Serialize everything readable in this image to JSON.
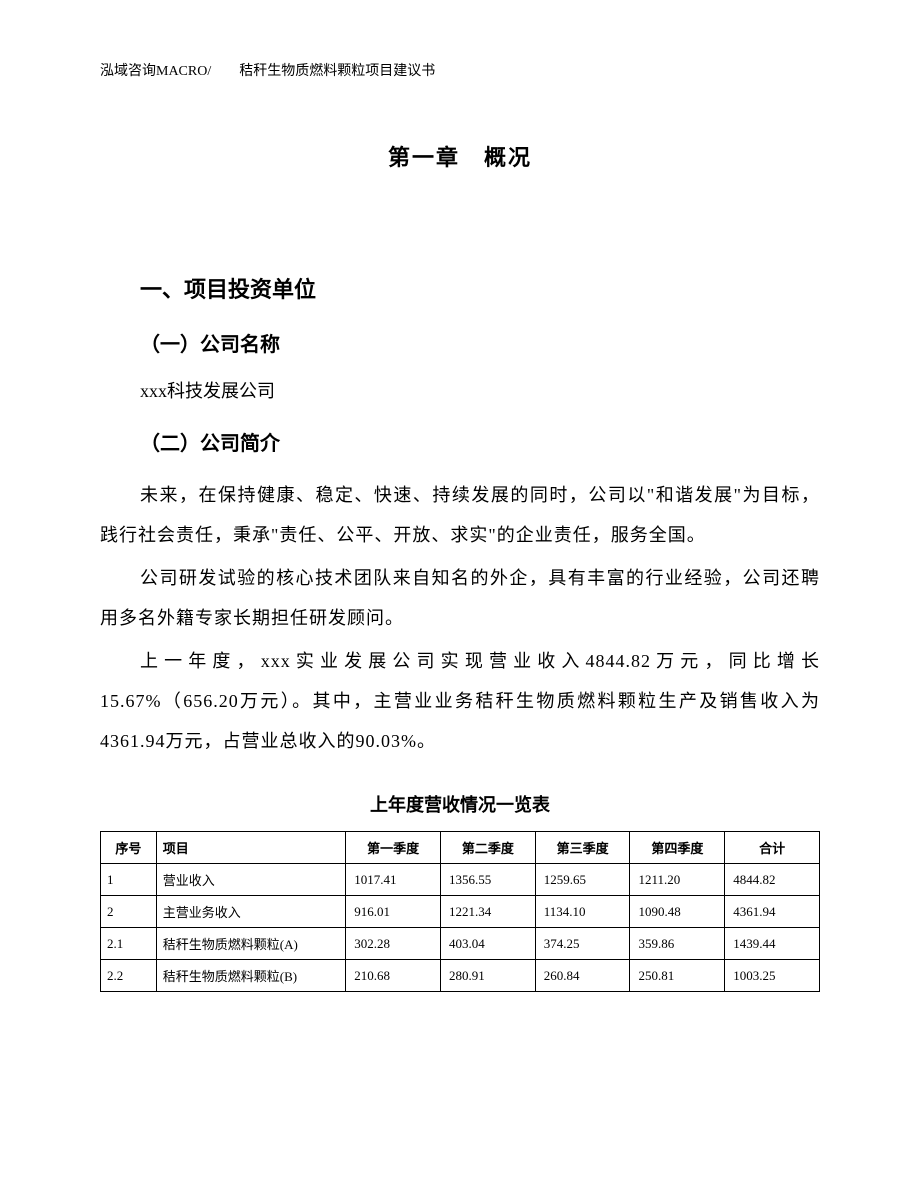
{
  "header": "泓域咨询MACRO/　　秸秆生物质燃料颗粒项目建议书",
  "chapter_title": "第一章　概况",
  "section1": {
    "heading": "一、项目投资单位",
    "sub1": {
      "heading": "（一）公司名称",
      "company_name": "xxx科技发展公司"
    },
    "sub2": {
      "heading": "（二）公司简介",
      "para1": "未来，在保持健康、稳定、快速、持续发展的同时，公司以\"和谐发展\"为目标，践行社会责任，秉承\"责任、公平、开放、求实\"的企业责任，服务全国。",
      "para2": "公司研发试验的核心技术团队来自知名的外企，具有丰富的行业经验，公司还聘用多名外籍专家长期担任研发顾问。",
      "para3": "上一年度，xxx实业发展公司实现营业收入4844.82万元，同比增长15.67%（656.20万元）。其中，主营业业务秸秆生物质燃料颗粒生产及销售收入为4361.94万元，占营业总收入的90.03%。"
    }
  },
  "table": {
    "title": "上年度营收情况一览表",
    "headers": {
      "seq": "序号",
      "item": "项目",
      "q1": "第一季度",
      "q2": "第二季度",
      "q3": "第三季度",
      "q4": "第四季度",
      "total": "合计"
    },
    "rows": [
      {
        "seq": "1",
        "item": "营业收入",
        "q1": "1017.41",
        "q2": "1356.55",
        "q3": "1259.65",
        "q4": "1211.20",
        "total": "4844.82"
      },
      {
        "seq": "2",
        "item": "主营业务收入",
        "q1": "916.01",
        "q2": "1221.34",
        "q3": "1134.10",
        "q4": "1090.48",
        "total": "4361.94"
      },
      {
        "seq": "2.1",
        "item": "秸秆生物质燃料颗粒(A)",
        "q1": "302.28",
        "q2": "403.04",
        "q3": "374.25",
        "q4": "359.86",
        "total": "1439.44"
      },
      {
        "seq": "2.2",
        "item": "秸秆生物质燃料颗粒(B)",
        "q1": "210.68",
        "q2": "280.91",
        "q3": "260.84",
        "q4": "250.81",
        "total": "1003.25"
      }
    ]
  }
}
